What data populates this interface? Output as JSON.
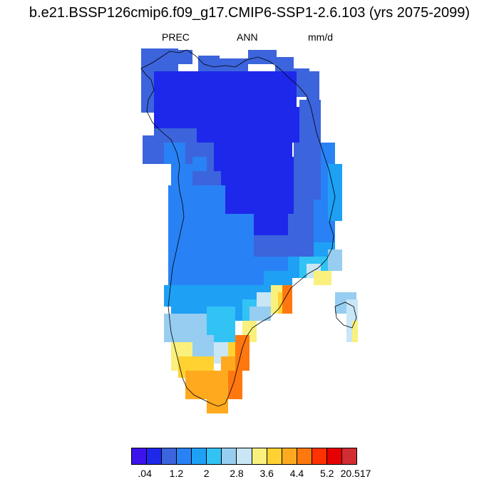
{
  "title": "b.e21.BSSP126cmip6.f09_g17.CMIP6-SSP1-2.6.103 (yrs 2075-2099)",
  "subtitle": {
    "variable": "PREC",
    "season": "ANN",
    "units": "mm/d"
  },
  "colorbar": {
    "colors": [
      "#3c14eb",
      "#1e28eb",
      "#3c64dc",
      "#2882f5",
      "#1ea0f5",
      "#32c3f5",
      "#96cdf0",
      "#c8e6f5",
      "#faf07d",
      "#ffd232",
      "#ffaa1e",
      "#ff780f",
      "#ff3200",
      "#e60000",
      "#d22d32"
    ],
    "tick_labels": [
      ".04",
      "1.2",
      "2",
      "2.8",
      "3.6",
      "4.4",
      "5.2",
      "20.517"
    ]
  }
}
